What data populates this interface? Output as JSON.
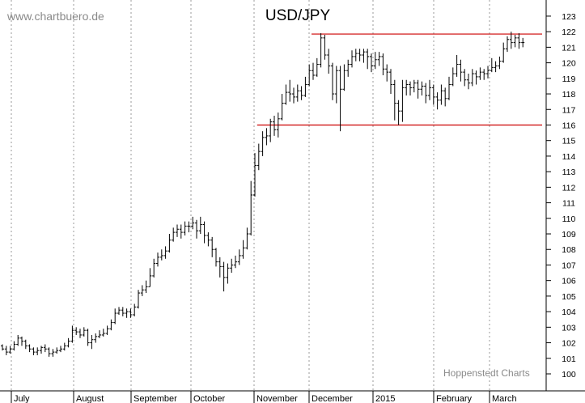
{
  "watermark": "www.chartbuero.de",
  "credit": "Hoppenstedt Charts",
  "chart_data": {
    "type": "bar",
    "title": "USD/JPY",
    "ylim": [
      99,
      123.5
    ],
    "y_ticks": [
      100,
      101,
      102,
      103,
      104,
      105,
      106,
      107,
      108,
      109,
      110,
      111,
      112,
      113,
      114,
      115,
      116,
      117,
      118,
      119,
      120,
      121,
      122,
      123
    ],
    "month_labels": [
      "July",
      "August",
      "September",
      "October",
      "November",
      "December",
      "2015",
      "February",
      "March"
    ],
    "grid": "vertical dotted lines at month starts",
    "colors": {
      "bars": "#000000",
      "grid": "#9a9a9a",
      "levels": "#cc0000",
      "axis": "#000000"
    },
    "horizontal_levels": [
      {
        "value": 121.85,
        "from_index": 80
      },
      {
        "value": 116.0,
        "from_index": 66
      }
    ],
    "series": [
      {
        "ohlc": [
          [
            101.8,
            101.6,
            101.9,
            101.5
          ],
          [
            101.6,
            101.4,
            101.8,
            101.2
          ],
          [
            101.4,
            101.6,
            101.8,
            101.3
          ],
          [
            101.6,
            101.9,
            102.1,
            101.5
          ],
          [
            101.9,
            102.3,
            102.5,
            101.8
          ],
          [
            102.3,
            102.1,
            102.4,
            101.8
          ],
          [
            102.1,
            101.8,
            102.2,
            101.6
          ],
          [
            101.8,
            101.6,
            101.9,
            101.4
          ],
          [
            101.6,
            101.4,
            101.7,
            101.2
          ],
          [
            101.4,
            101.5,
            101.7,
            101.2
          ],
          [
            101.5,
            101.7,
            101.8,
            101.3
          ],
          [
            101.7,
            101.6,
            101.9,
            101.4
          ],
          [
            101.6,
            101.3,
            101.7,
            101.1
          ],
          [
            101.3,
            101.4,
            101.6,
            101.1
          ],
          [
            101.4,
            101.5,
            101.7,
            101.3
          ],
          [
            101.5,
            101.6,
            101.8,
            101.4
          ],
          [
            101.6,
            101.8,
            102.0,
            101.5
          ],
          [
            101.8,
            102.1,
            102.3,
            101.7
          ],
          [
            102.1,
            102.8,
            103.1,
            102.0
          ],
          [
            102.8,
            102.7,
            103.0,
            102.5
          ],
          [
            102.7,
            102.5,
            102.9,
            102.3
          ],
          [
            102.5,
            102.8,
            103.0,
            102.4
          ],
          [
            102.8,
            102.0,
            102.9,
            101.8
          ],
          [
            102.0,
            102.2,
            102.5,
            101.6
          ],
          [
            102.2,
            102.4,
            102.6,
            102.0
          ],
          [
            102.4,
            102.5,
            102.8,
            102.3
          ],
          [
            102.5,
            102.6,
            102.9,
            102.4
          ],
          [
            102.6,
            102.9,
            103.1,
            102.5
          ],
          [
            102.9,
            103.3,
            103.5,
            102.8
          ],
          [
            103.3,
            103.9,
            104.2,
            103.2
          ],
          [
            103.9,
            104.1,
            104.3,
            103.8
          ],
          [
            104.1,
            103.9,
            104.3,
            103.7
          ],
          [
            103.9,
            104.0,
            104.2,
            103.6
          ],
          [
            104.0,
            103.8,
            104.2,
            103.6
          ],
          [
            103.8,
            104.3,
            104.5,
            103.7
          ],
          [
            104.3,
            105.2,
            105.4,
            104.2
          ],
          [
            105.2,
            105.4,
            105.7,
            105.0
          ],
          [
            105.4,
            105.6,
            106.0,
            105.2
          ],
          [
            105.6,
            106.3,
            106.8,
            105.6
          ],
          [
            106.3,
            107.1,
            107.4,
            106.2
          ],
          [
            107.1,
            107.5,
            107.8,
            106.9
          ],
          [
            107.5,
            107.6,
            108.0,
            107.3
          ],
          [
            107.6,
            107.9,
            108.2,
            107.4
          ],
          [
            107.9,
            108.6,
            109.0,
            107.8
          ],
          [
            108.6,
            109.1,
            109.4,
            108.5
          ],
          [
            109.1,
            109.3,
            109.6,
            108.8
          ],
          [
            109.3,
            109.1,
            109.6,
            108.7
          ],
          [
            109.1,
            109.5,
            109.8,
            108.9
          ],
          [
            109.5,
            109.5,
            109.8,
            109.1
          ],
          [
            109.5,
            109.7,
            110.1,
            109.3
          ],
          [
            109.7,
            109.2,
            109.9,
            108.7
          ],
          [
            109.2,
            109.6,
            110.1,
            109.0
          ],
          [
            109.6,
            108.9,
            109.8,
            108.4
          ],
          [
            108.9,
            108.6,
            109.1,
            108.2
          ],
          [
            108.6,
            108.0,
            108.8,
            107.5
          ],
          [
            108.0,
            107.2,
            108.1,
            106.9
          ],
          [
            107.2,
            106.9,
            107.5,
            106.2
          ],
          [
            106.9,
            106.2,
            107.2,
            105.3
          ],
          [
            106.2,
            106.8,
            107.1,
            105.8
          ],
          [
            106.8,
            107.0,
            107.4,
            106.5
          ],
          [
            107.0,
            107.2,
            107.6,
            106.8
          ],
          [
            107.2,
            107.6,
            108.0,
            107.0
          ],
          [
            107.6,
            108.1,
            108.6,
            107.4
          ],
          [
            108.1,
            109.0,
            109.4,
            108.0
          ],
          [
            109.0,
            111.5,
            112.4,
            108.9
          ],
          [
            111.5,
            113.4,
            114.2,
            111.4
          ],
          [
            113.4,
            114.3,
            114.8,
            113.1
          ],
          [
            114.3,
            115.2,
            115.6,
            114.0
          ],
          [
            115.2,
            115.3,
            115.8,
            114.7
          ],
          [
            115.3,
            116.2,
            116.4,
            114.9
          ],
          [
            116.2,
            115.7,
            116.6,
            115.3
          ],
          [
            115.7,
            116.4,
            116.8,
            115.2
          ],
          [
            116.4,
            117.4,
            118.0,
            116.3
          ],
          [
            117.4,
            118.1,
            118.6,
            117.3
          ],
          [
            118.1,
            118.0,
            118.9,
            117.5
          ],
          [
            118.0,
            117.8,
            118.4,
            117.4
          ],
          [
            117.8,
            118.2,
            118.6,
            117.5
          ],
          [
            118.2,
            117.9,
            118.5,
            117.6
          ],
          [
            117.9,
            118.6,
            119.1,
            117.8
          ],
          [
            118.6,
            119.5,
            119.9,
            118.5
          ],
          [
            119.5,
            119.2,
            120.0,
            118.9
          ],
          [
            119.2,
            119.9,
            120.3,
            119.1
          ],
          [
            119.9,
            121.6,
            121.9,
            119.7
          ],
          [
            121.6,
            120.5,
            121.8,
            120.2
          ],
          [
            120.5,
            119.8,
            120.9,
            119.3
          ],
          [
            119.8,
            118.0,
            120.0,
            117.6
          ],
          [
            118.0,
            119.5,
            119.8,
            117.4
          ],
          [
            119.5,
            118.3,
            119.8,
            115.6
          ],
          [
            118.3,
            119.5,
            119.9,
            118.2
          ],
          [
            119.5,
            119.9,
            120.2,
            119.1
          ],
          [
            119.9,
            120.4,
            120.8,
            119.7
          ],
          [
            120.4,
            120.6,
            120.9,
            120.1
          ],
          [
            120.6,
            120.5,
            120.9,
            120.1
          ],
          [
            120.5,
            120.7,
            120.9,
            120.0
          ],
          [
            120.7,
            120.4,
            120.9,
            119.6
          ],
          [
            120.4,
            119.8,
            120.6,
            119.4
          ],
          [
            119.8,
            120.2,
            120.7,
            119.6
          ],
          [
            120.2,
            120.4,
            120.7,
            119.8
          ],
          [
            120.4,
            119.6,
            120.6,
            119.2
          ],
          [
            119.6,
            119.4,
            119.9,
            118.8
          ],
          [
            119.4,
            118.6,
            119.6,
            118.0
          ],
          [
            118.6,
            117.4,
            118.9,
            116.3
          ],
          [
            117.4,
            116.9,
            117.6,
            116.0
          ],
          [
            116.9,
            118.4,
            118.9,
            116.2
          ],
          [
            118.4,
            118.6,
            118.9,
            117.9
          ],
          [
            118.6,
            118.4,
            118.8,
            117.9
          ],
          [
            118.4,
            118.7,
            118.9,
            118.1
          ],
          [
            118.7,
            118.3,
            118.9,
            117.7
          ],
          [
            118.3,
            118.5,
            118.8,
            117.9
          ],
          [
            118.5,
            117.9,
            118.7,
            117.4
          ],
          [
            117.9,
            118.4,
            118.9,
            117.6
          ],
          [
            118.4,
            117.8,
            118.6,
            117.3
          ],
          [
            117.8,
            117.6,
            118.1,
            117.0
          ],
          [
            117.6,
            118.2,
            118.6,
            117.3
          ],
          [
            118.2,
            117.7,
            118.4,
            117.2
          ],
          [
            117.7,
            118.6,
            119.1,
            117.6
          ],
          [
            118.6,
            119.3,
            119.7,
            118.5
          ],
          [
            119.3,
            119.9,
            120.5,
            119.1
          ],
          [
            119.9,
            119.4,
            120.2,
            118.8
          ],
          [
            119.4,
            118.9,
            119.6,
            118.5
          ],
          [
            118.9,
            118.7,
            119.3,
            118.3
          ],
          [
            118.7,
            119.3,
            119.6,
            118.5
          ],
          [
            119.3,
            119.1,
            119.5,
            118.6
          ],
          [
            119.1,
            119.4,
            119.7,
            118.9
          ],
          [
            119.4,
            119.3,
            119.6,
            118.9
          ],
          [
            119.3,
            119.5,
            119.8,
            119.0
          ],
          [
            119.5,
            119.7,
            120.3,
            119.4
          ],
          [
            119.7,
            119.8,
            120.1,
            119.4
          ],
          [
            119.8,
            120.1,
            120.4,
            119.6
          ],
          [
            120.1,
            120.9,
            121.3,
            120.0
          ],
          [
            120.9,
            121.5,
            121.7,
            120.7
          ],
          [
            121.5,
            121.3,
            122.0,
            120.9
          ],
          [
            121.3,
            121.6,
            121.8,
            121.0
          ],
          [
            121.6,
            121.3,
            121.9,
            120.9
          ],
          [
            121.3,
            121.3,
            121.6,
            121.0
          ]
        ]
      }
    ]
  }
}
